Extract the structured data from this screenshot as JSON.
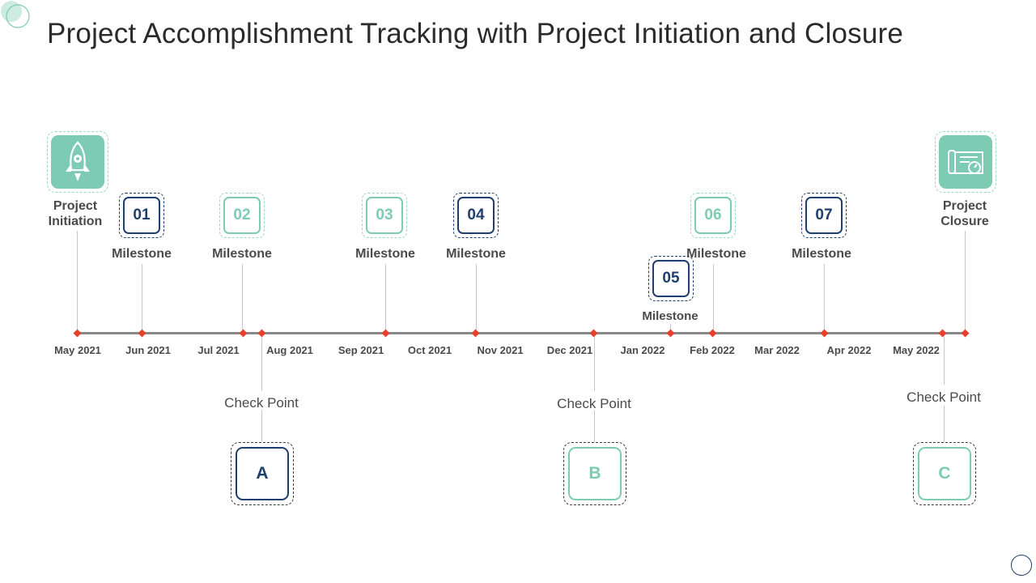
{
  "title": "Project Accomplishment Tracking with Project Initiation and Closure",
  "colors": {
    "navy": "#1f3f6e",
    "teal": "#7ecbb3",
    "marker": "#e8402a",
    "axis": "#8a8a8a"
  },
  "timeline": {
    "months": [
      "May 2021",
      "Jun 2021",
      "Jul 2021",
      "Aug 2021",
      "Sep 2021",
      "Oct 2021",
      "Nov 2021",
      "Dec 2021",
      "Jan 2022",
      "Feb 2022",
      "Mar 2022",
      "Apr 2022",
      "May 2022"
    ]
  },
  "start": {
    "label_line1": "Project",
    "label_line2": "Initiation",
    "icon": "rocket-gear-icon"
  },
  "end": {
    "label_line1": "Project",
    "label_line2": "Closure",
    "icon": "blueprint-icon"
  },
  "milestones": [
    {
      "number": "01",
      "label": "Milestone",
      "color": "navy"
    },
    {
      "number": "02",
      "label": "Milestone",
      "color": "teal"
    },
    {
      "number": "03",
      "label": "Milestone",
      "color": "teal"
    },
    {
      "number": "04",
      "label": "Milestone",
      "color": "navy"
    },
    {
      "number": "05",
      "label": "Milestone",
      "color": "navy"
    },
    {
      "number": "06",
      "label": "Milestone",
      "color": "teal"
    },
    {
      "number": "07",
      "label": "Milestone",
      "color": "navy"
    }
  ],
  "checkpoints": [
    {
      "letter": "A",
      "label": "Check Point",
      "color": "navy"
    },
    {
      "letter": "B",
      "label": "Check Point",
      "color": "teal"
    },
    {
      "letter": "C",
      "label": "Check Point",
      "color": "teal"
    }
  ]
}
